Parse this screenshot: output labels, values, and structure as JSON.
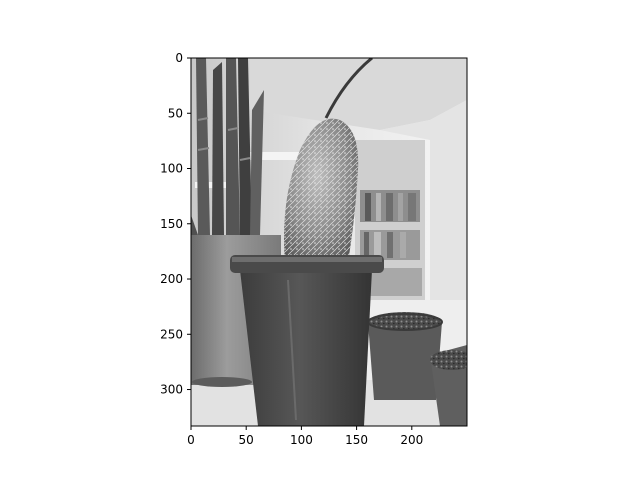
{
  "figure": {
    "background": "#ffffff",
    "image_content": "grayscale photo",
    "colormap": "gray"
  },
  "axes": {
    "x_ticks": [
      0,
      50,
      100,
      150,
      200
    ],
    "y_ticks": [
      0,
      50,
      100,
      150,
      200,
      250,
      300
    ],
    "x_range": [
      0,
      250
    ],
    "y_range": [
      333,
      0
    ],
    "y_axis_inverted": true
  }
}
